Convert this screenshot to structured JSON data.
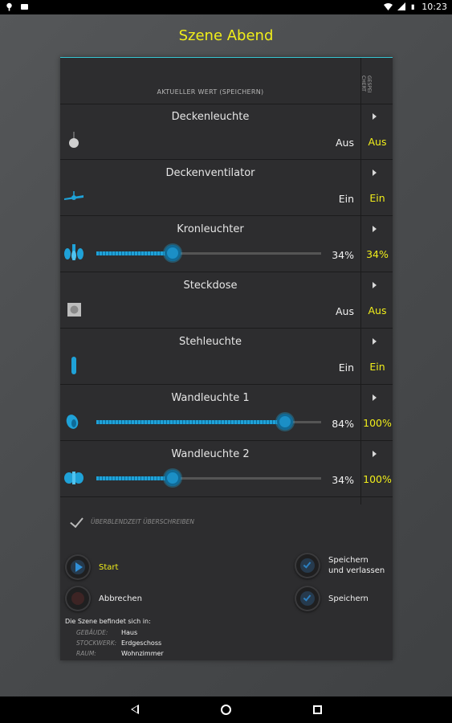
{
  "status": {
    "time": "10:23"
  },
  "title": "Szene Abend",
  "header": {
    "current": "AKTUELLER WERT (SPEICHERN)",
    "saved": "GESPEI CHERT"
  },
  "devices": [
    {
      "name": "Deckenleuchte",
      "value": "Aus",
      "saved": "Aus",
      "icon": "ceiling-light-icon"
    },
    {
      "name": "Deckenventilator",
      "value": "Ein",
      "saved": "Ein",
      "icon": "ceiling-fan-icon"
    },
    {
      "name": "Kronleuchter",
      "value": "34%",
      "saved": "34%",
      "level": 34,
      "icon": "chandelier-icon"
    },
    {
      "name": "Steckdose",
      "value": "Aus",
      "saved": "Aus",
      "icon": "socket-icon"
    },
    {
      "name": "Stehleuchte",
      "value": "Ein",
      "saved": "Ein",
      "icon": "floor-lamp-icon"
    },
    {
      "name": "Wandleuchte 1",
      "value": "84%",
      "saved": "100%",
      "level": 84,
      "icon": "wall-light-icon"
    },
    {
      "name": "Wandleuchte 2",
      "value": "34%",
      "saved": "100%",
      "level": 34,
      "icon": "wall-light-double-icon"
    }
  ],
  "override_label": "ÜBERBLENDZEIT ÜBERSCHREIBEN",
  "actions": {
    "start": "Start",
    "cancel": "Abbrechen",
    "save_exit_1": "Speichern",
    "save_exit_2": "und verlassen",
    "save": "Speichern"
  },
  "info": {
    "head": "Die Szene befindet sich in:",
    "building_label": "GEBÄUDE:",
    "building": "Haus",
    "floor_label": "STOCKWERK:",
    "floor": "Erdgeschoss",
    "room_label": "RAUM:",
    "room": "Wohnzimmer"
  },
  "colors": {
    "accent": "#f1ee1a",
    "slider": "#1fa2d8",
    "panel": "#2d2d2f"
  }
}
